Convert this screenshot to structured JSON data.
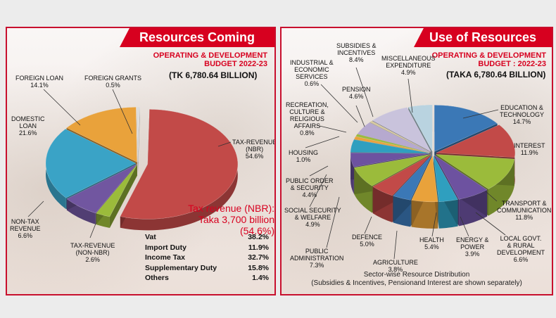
{
  "left": {
    "banner": "Resources Coming From",
    "subtitle_line1": "OPERATING & DEVELOPMENT",
    "subtitle_line2": "BUDGET 2022-23",
    "total": "(TK 6,780.64 BILLION)",
    "tax_heading_line1": "Tax revenue (NBR):",
    "tax_heading_line2": "Taka 3,700 billion (54.6%)",
    "tax_breakdown": [
      {
        "name": "Vat",
        "value": "38.2%"
      },
      {
        "name": "Import Duty",
        "value": "11.9%"
      },
      {
        "name": "Income Tax",
        "value": "32.7%"
      },
      {
        "name": "Supplementary Duty",
        "value": "15.8%"
      },
      {
        "name": "Others",
        "value": "1.4%"
      }
    ]
  },
  "right": {
    "banner": "Use of Resources",
    "subtitle_line1": "OPERATING & DEVELOPMENT",
    "subtitle_line2": "BUDGET : 2022-23",
    "total": "(TAKA 6,780.64 BILLION)",
    "caption_line1": "Sector-wise Resource Distribution",
    "caption_line2": "(Subsidies & Incentives, Pensionand Interest are shown separately)"
  },
  "chart_data": [
    {
      "type": "pie",
      "title": "Resources Coming From",
      "slices": [
        {
          "label_lines": [
            "TAX-REVENUE",
            "(NBR)"
          ],
          "value": 54.6,
          "pct": "54.6%",
          "color": "#c24a48"
        },
        {
          "label_lines": [
            "TAX-REVENUE",
            "(NON-NBR)"
          ],
          "value": 2.6,
          "pct": "2.6%",
          "color": "#9bbb3b"
        },
        {
          "label_lines": [
            "NON-TAX",
            "REVENUE"
          ],
          "value": 6.6,
          "pct": "6.6%",
          "color": "#7156a0"
        },
        {
          "label_lines": [
            "DOMESTIC",
            "LOAN"
          ],
          "value": 21.6,
          "pct": "21.6%",
          "color": "#3aa3c6"
        },
        {
          "label_lines": [
            "FOREIGN LOAN"
          ],
          "value": 14.1,
          "pct": "14.1%",
          "color": "#e9a23b"
        },
        {
          "label_lines": [
            "FOREIGN GRANTS"
          ],
          "value": 0.5,
          "pct": "0.5%",
          "color": "#dcdcdc"
        }
      ]
    },
    {
      "type": "pie",
      "title": "Use of Resources",
      "slices": [
        {
          "label_lines": [
            "EDUCATION &",
            "TECHNOLOGY"
          ],
          "value": 14.7,
          "pct": "14.7%",
          "color": "#3b78b6"
        },
        {
          "label_lines": [
            "INTEREST"
          ],
          "value": 11.9,
          "pct": "11.9%",
          "color": "#c24a48"
        },
        {
          "label_lines": [
            "TRANSPORT &",
            "COMMUNICATION"
          ],
          "value": 11.8,
          "pct": "11.8%",
          "color": "#9bbb3b"
        },
        {
          "label_lines": [
            "LOCAL GOVT.",
            "& RURAL",
            "DEVELOPMENT"
          ],
          "value": 6.6,
          "pct": "6.6%",
          "color": "#6d52a0"
        },
        {
          "label_lines": [
            "ENERGY &",
            "POWER"
          ],
          "value": 3.9,
          "pct": "3.9%",
          "color": "#2f9fbf"
        },
        {
          "label_lines": [
            "HEALTH"
          ],
          "value": 5.4,
          "pct": "5.4%",
          "color": "#e9a23b"
        },
        {
          "label_lines": [
            "AGRICULTURE"
          ],
          "value": 3.8,
          "pct": "3.8%",
          "color": "#3b78b6"
        },
        {
          "label_lines": [
            "DEFENCE"
          ],
          "value": 5.0,
          "pct": "5.0%",
          "color": "#c24a48"
        },
        {
          "label_lines": [
            "PUBLIC",
            "ADMINISTRATION"
          ],
          "value": 7.3,
          "pct": "7.3%",
          "color": "#9bbb3b"
        },
        {
          "label_lines": [
            "SOCIAL SECURITY",
            "& WELFARE"
          ],
          "value": 4.9,
          "pct": "4.9%",
          "color": "#6d52a0"
        },
        {
          "label_lines": [
            "PUBLIC ORDER",
            "& SECURITY"
          ],
          "value": 4.4,
          "pct": "4.4%",
          "color": "#2f9fbf"
        },
        {
          "label_lines": [
            "HOUSING"
          ],
          "value": 1.0,
          "pct": "1.0%",
          "color": "#e9a23b"
        },
        {
          "label_lines": [
            "RECREATION,",
            "CULTURE &",
            "RELIGIOUS",
            "AFFAIRS"
          ],
          "value": 0.8,
          "pct": "0.8%",
          "color": "#9bbb3b"
        },
        {
          "label_lines": [
            "PENSION"
          ],
          "value": 4.6,
          "pct": "4.6%",
          "color": "#b6a9cf"
        },
        {
          "label_lines": [
            "INDUSTRIAL &",
            "ECONOMIC",
            "SERVICES"
          ],
          "value": 0.6,
          "pct": "0.6%",
          "color": "#d6c9a0"
        },
        {
          "label_lines": [
            "SUBSIDIES &",
            "INCENTIVES"
          ],
          "value": 8.4,
          "pct": "8.4%",
          "color": "#c9c3dc"
        },
        {
          "label_lines": [
            "MISCELLANEOUS",
            "EXPENDITURE"
          ],
          "value": 4.9,
          "pct": "4.9%",
          "color": "#b9d3e0"
        }
      ]
    }
  ]
}
